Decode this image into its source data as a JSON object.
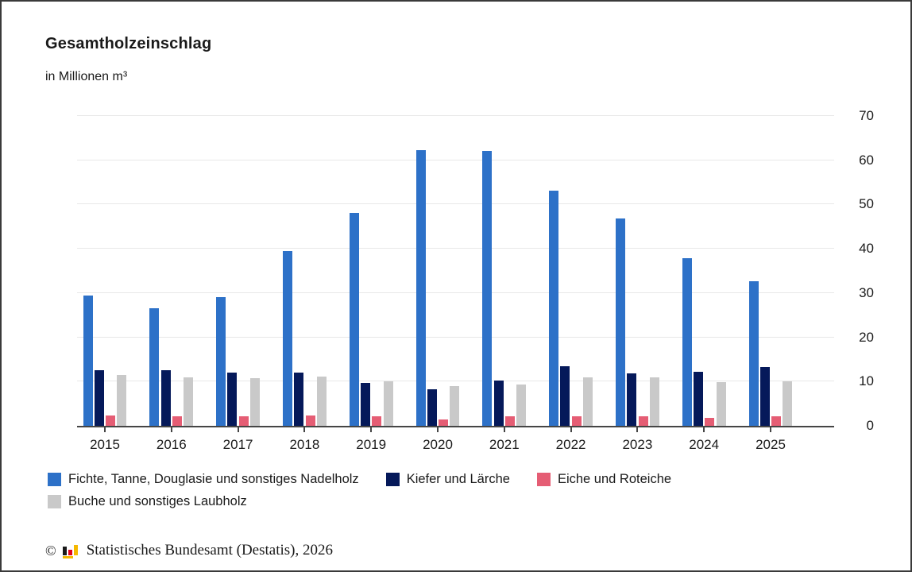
{
  "chart_data": {
    "type": "bar",
    "title": "Gesamtholzeinschlag",
    "subtitle": "in Millionen m³",
    "categories": [
      "2015",
      "2016",
      "2017",
      "2018",
      "2019",
      "2020",
      "2021",
      "2022",
      "2023",
      "2024",
      "2025"
    ],
    "series": [
      {
        "name": "Fichte, Tanne, Douglasie und sonstiges Nadelholz",
        "color": "#2d71c8",
        "values": [
          29.5,
          26.6,
          29.0,
          39.5,
          48.1,
          62.3,
          62.1,
          53.2,
          46.8,
          37.8,
          32.6
        ]
      },
      {
        "name": "Kiefer und Lärche",
        "color": "#05195a",
        "values": [
          12.6,
          12.5,
          12.1,
          12.1,
          9.7,
          8.3,
          10.3,
          13.5,
          11.8,
          12.2,
          13.3
        ]
      },
      {
        "name": "Eiche und Roteiche",
        "color": "#e55d74",
        "values": [
          2.3,
          2.2,
          2.1,
          2.4,
          2.2,
          1.5,
          2.2,
          2.2,
          2.2,
          1.8,
          2.1
        ]
      },
      {
        "name": "Buche und sonstiges Laubholz",
        "color": "#c9c9c9",
        "values": [
          11.5,
          11.0,
          10.8,
          11.1,
          10.1,
          9.0,
          9.3,
          10.9,
          10.9,
          9.8,
          10.1
        ]
      }
    ],
    "xlabel": "",
    "ylabel": "",
    "ylim": [
      0,
      70
    ],
    "yticks": [
      0,
      10,
      20,
      30,
      40,
      50,
      60,
      70
    ],
    "grid": true,
    "legend_position": "bottom",
    "legend_rows": [
      [
        0,
        1,
        2
      ],
      [
        3
      ]
    ]
  },
  "footer": {
    "copyright_symbol": "©",
    "text": "Statistisches Bundesamt (Destatis), 2026"
  },
  "colors": {
    "gridline": "#e8e8e8",
    "axis": "#454545",
    "text": "#1a1a1a",
    "frame_border": "#3a3a3a",
    "logo_black": "#1a1a1a",
    "logo_red": "#e2001a",
    "logo_gold": "#f5b800"
  }
}
